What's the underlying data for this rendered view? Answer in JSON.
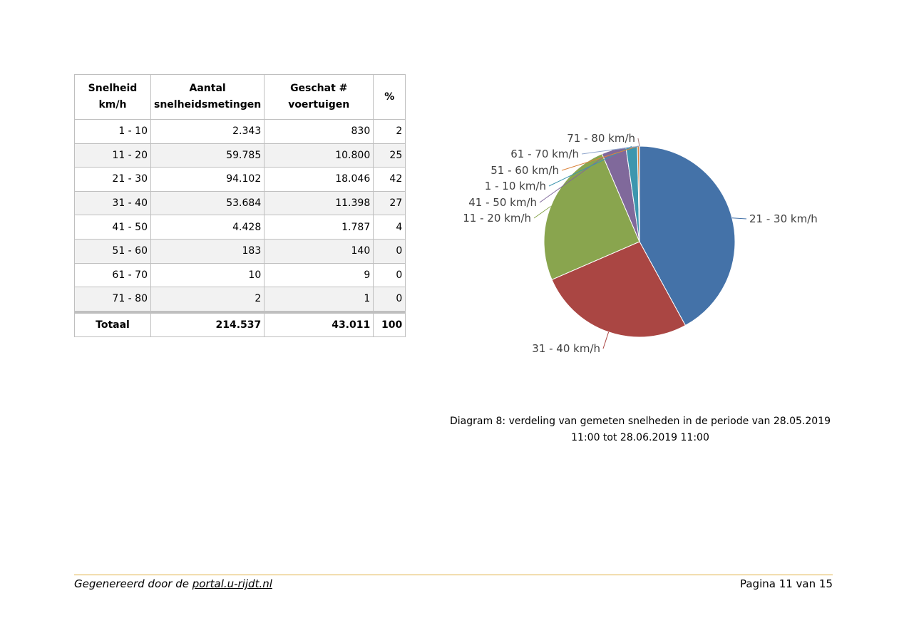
{
  "table": {
    "headers": [
      [
        "Snelheid",
        "km/h"
      ],
      [
        "Aantal",
        "snelheidsmetingen"
      ],
      [
        "Geschat #",
        "voertuigen"
      ],
      [
        "%"
      ]
    ],
    "rows": [
      [
        "1 - 10",
        "2.343",
        "830",
        "2"
      ],
      [
        "11 - 20",
        "59.785",
        "10.800",
        "25"
      ],
      [
        "21 - 30",
        "94.102",
        "18.046",
        "42"
      ],
      [
        "31 - 40",
        "53.684",
        "11.398",
        "27"
      ],
      [
        "41 - 50",
        "4.428",
        "1.787",
        "4"
      ],
      [
        "51 - 60",
        "183",
        "140",
        "0"
      ],
      [
        "61 - 70",
        "10",
        "9",
        "0"
      ],
      [
        "71 - 80",
        "2",
        "1",
        "0"
      ]
    ],
    "total": [
      "Totaal",
      "214.537",
      "43.011",
      "100"
    ]
  },
  "chart_data": {
    "type": "pie",
    "title": "",
    "categories": [
      "21 - 30 km/h",
      "31 - 40 km/h",
      "11 - 20 km/h",
      "41 - 50 km/h",
      "1 - 10 km/h",
      "51 - 60 km/h",
      "61 - 70 km/h",
      "71 - 80 km/h"
    ],
    "values": [
      42.06,
      26.5,
      25.11,
      4.15,
      1.93,
      0.33,
      0.02,
      0.002
    ],
    "colors": [
      "#4472a8",
      "#aa4643",
      "#89a54e",
      "#80699b",
      "#3d96ae",
      "#db843d",
      "#92a8cd",
      "#a47d7c"
    ]
  },
  "caption": {
    "line1": "Diagram 8: verdeling van gemeten snelheden in de periode van 28.05.2019",
    "line2": "11:00 tot 28.06.2019 11:00"
  },
  "footer": {
    "prefix": "Gegenereerd door de ",
    "link": "portal.u-rijdt.nl",
    "page": "Pagina 11 van 15"
  }
}
